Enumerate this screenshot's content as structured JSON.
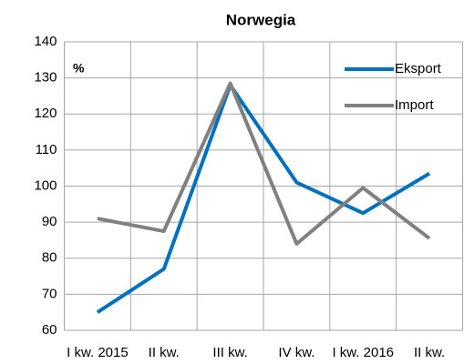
{
  "chart_data": {
    "type": "line",
    "title": "Norwegia",
    "annotation": "%",
    "categories": [
      "I kw. 2015",
      "II kw.",
      "III kw.",
      "IV kw.",
      "I kw. 2016",
      "II kw."
    ],
    "series": [
      {
        "name": "Eksport",
        "color": "#0070c0",
        "values": [
          65,
          77,
          128,
          101,
          92.5,
          103.5
        ]
      },
      {
        "name": "Import",
        "color": "#808080",
        "values": [
          91,
          87.5,
          128.5,
          84,
          99.5,
          85.5
        ]
      }
    ],
    "ylim": [
      60,
      140
    ],
    "yticks": [
      60,
      70,
      80,
      90,
      100,
      110,
      120,
      130,
      140
    ],
    "grid": true,
    "legend": "upper right"
  }
}
